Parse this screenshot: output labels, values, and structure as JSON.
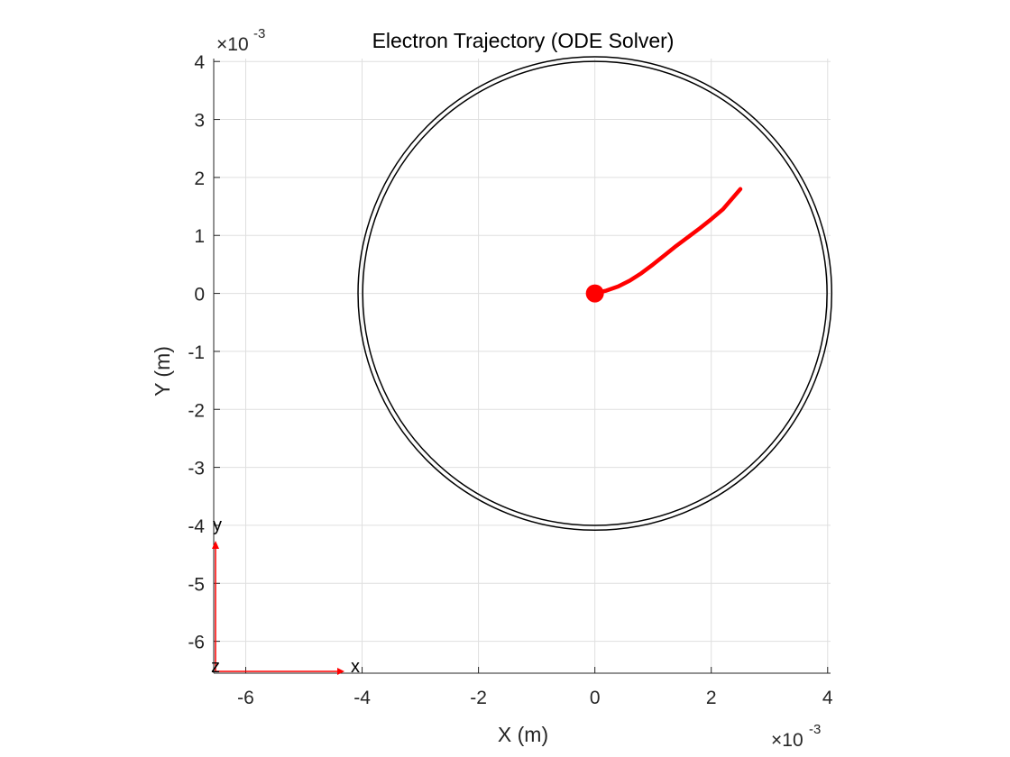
{
  "chart_data": {
    "type": "line",
    "title": "Electron Trajectory (ODE Solver)",
    "xlabel": "X (m)",
    "ylabel": "Y (m)",
    "x_exponent": {
      "base": "×10",
      "power": "-3"
    },
    "y_exponent": {
      "base": "×10",
      "power": "-3"
    },
    "xlim": [
      -0.00655,
      0.00405
    ],
    "ylim": [
      -0.00655,
      0.00405
    ],
    "xticks": [
      -0.006,
      -0.004,
      -0.002,
      0,
      0.002,
      0.004
    ],
    "xtick_labels": [
      "-6",
      "-4",
      "-2",
      "0",
      "2",
      "4"
    ],
    "yticks": [
      0.004,
      0.003,
      0.002,
      0.001,
      0,
      -0.001,
      -0.002,
      -0.003,
      -0.004,
      -0.005,
      -0.006
    ],
    "ytick_labels": [
      "4",
      "3",
      "2",
      "1",
      "0",
      "-1",
      "-2",
      "-3",
      "-4",
      "-5",
      "-6"
    ],
    "grid": true,
    "series": [
      {
        "name": "boundary-outer",
        "kind": "circle",
        "center": [
          0,
          0
        ],
        "radius": 0.00407,
        "color": "#000000"
      },
      {
        "name": "boundary-inner",
        "kind": "circle",
        "center": [
          0,
          0
        ],
        "radius": 0.00399,
        "color": "#000000"
      },
      {
        "name": "trajectory",
        "kind": "line",
        "color": "#ff0000",
        "x": [
          0,
          0.0002,
          0.0004,
          0.0006,
          0.0008,
          0.001,
          0.0012,
          0.0014,
          0.0016,
          0.0018,
          0.002,
          0.0022,
          0.0025
        ],
        "y": [
          0,
          5e-05,
          0.00012,
          0.00022,
          0.00035,
          0.0005,
          0.00066,
          0.00082,
          0.00097,
          0.00112,
          0.00128,
          0.00145,
          0.0018
        ]
      },
      {
        "name": "start-point",
        "kind": "marker",
        "color": "#ff0000",
        "x": [
          0
        ],
        "y": [
          0
        ]
      }
    ],
    "triad": {
      "x_label": "x",
      "y_label": "y",
      "z_label": "z",
      "color": "#ff0000"
    }
  }
}
